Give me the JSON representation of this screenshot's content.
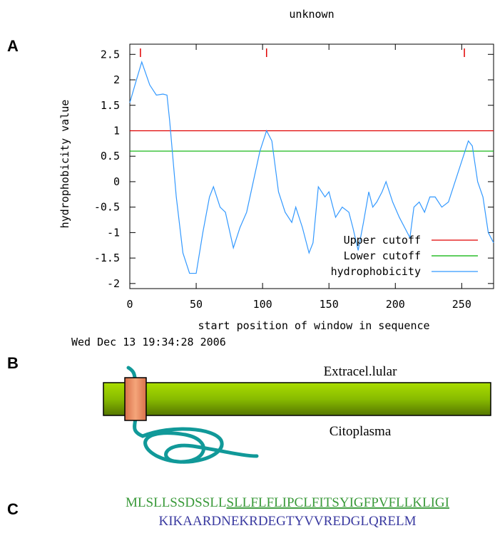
{
  "chart_data": {
    "type": "line",
    "title": "unknown",
    "x_label": "start position of window in sequence",
    "y_label": "hydrophobicity value",
    "timestamp": "Wed Dec 13 19:34:28 2006",
    "xlim": [
      0,
      274
    ],
    "ylim": [
      -2.1,
      2.7
    ],
    "xticks": [
      0,
      50,
      100,
      150,
      200,
      250
    ],
    "yticks": [
      2.5,
      2,
      1.5,
      1,
      0.5,
      0,
      -0.5,
      -1,
      -1.5,
      -2
    ],
    "lines": [
      {
        "name": "Upper cutoff",
        "color": "#e00000",
        "y": 1
      },
      {
        "name": "Lower cutoff",
        "color": "#00b000",
        "y": 0.6
      }
    ],
    "markers": {
      "color": "#e00000",
      "x": [
        8,
        103,
        252
      ]
    },
    "series": [
      {
        "name": "hydrophobicity",
        "color": "#3399ff",
        "x": [
          0,
          5,
          9,
          15,
          20,
          25,
          28,
          30,
          35,
          40,
          45,
          50,
          55,
          60,
          63,
          68,
          72,
          78,
          83,
          88,
          93,
          98,
          103,
          107,
          112,
          117,
          122,
          125,
          130,
          135,
          138,
          142,
          147,
          150,
          155,
          160,
          165,
          168,
          172,
          176,
          180,
          183,
          186,
          190,
          193,
          198,
          203,
          207,
          211,
          214,
          218,
          222,
          226,
          230,
          235,
          240,
          245,
          250,
          255,
          258,
          262,
          266,
          270,
          274
        ],
        "values": [
          1.55,
          2.0,
          2.35,
          1.9,
          1.7,
          1.72,
          1.7,
          1.2,
          -0.3,
          -1.4,
          -1.8,
          -1.8,
          -1.0,
          -0.3,
          -0.1,
          -0.5,
          -0.6,
          -1.3,
          -0.9,
          -0.6,
          0.0,
          0.6,
          1.0,
          0.8,
          -0.2,
          -0.6,
          -0.8,
          -0.5,
          -0.9,
          -1.4,
          -1.2,
          -0.1,
          -0.3,
          -0.2,
          -0.7,
          -0.5,
          -0.6,
          -0.9,
          -1.35,
          -0.8,
          -0.2,
          -0.5,
          -0.4,
          -0.2,
          0.0,
          -0.4,
          -0.7,
          -0.9,
          -1.1,
          -0.5,
          -0.4,
          -0.6,
          -0.3,
          -0.3,
          -0.5,
          -0.4,
          0.0,
          0.4,
          0.8,
          0.7,
          0.0,
          -0.3,
          -1.0,
          -1.2
        ]
      }
    ]
  },
  "panels": {
    "a": "A",
    "b": "B",
    "c": "C"
  },
  "diagram": {
    "top_label": "Extracel.lular",
    "bottom_label": "Citoplasma"
  },
  "sequence": {
    "line1_plain": "MLSLLSSDSSLL",
    "line1_underlined": "SLLFLFLIPCLFITSYIGFPVFLLKLIGI",
    "line2": "KIKAARDNEKRDEGTYVVREDGLQRELM"
  }
}
